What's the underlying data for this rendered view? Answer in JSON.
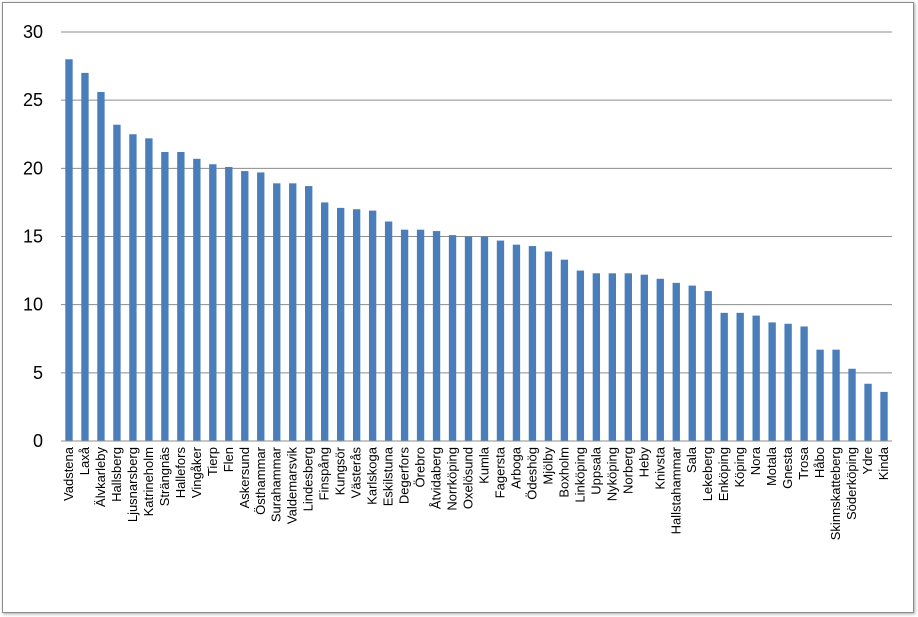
{
  "chart_data": {
    "type": "bar",
    "title": "",
    "xlabel": "",
    "ylabel": "",
    "ylim": [
      0,
      30
    ],
    "yticks": [
      "0",
      "5",
      "10",
      "15",
      "20",
      "25",
      "30"
    ],
    "grid": true,
    "legend": "none",
    "colors": {
      "bar": "#4a7ebb",
      "grid": "#8c8c8c",
      "axis": "#8c8c8c"
    },
    "categories": [
      "Vadstena",
      "Laxå",
      "Älvkarleby",
      "Hallsberg",
      "Ljusnarsberg",
      "Katrineholm",
      "Strängnäs",
      "Hallefors",
      "Vingåker",
      "Tierp",
      "Flen",
      "Askersund",
      "Östhammar",
      "Surahammar",
      "Valdemarsvik",
      "Lindesberg",
      "Finspång",
      "Kungsör",
      "Västerås",
      "Karlskoga",
      "Eskilstuna",
      "Degerfors",
      "Örebro",
      "Åtvidaberg",
      "Norrköping",
      "Oxelösund",
      "Kumla",
      "Fagersta",
      "Arboga",
      "Ödeshög",
      "Mjölby",
      "Boxholm",
      "Linköping",
      "Uppsala",
      "Nyköping",
      "Norberg",
      "Heby",
      "Knivsta",
      "Hallstahammar",
      "Sala",
      "Lekeberg",
      "Enköping",
      "Köping",
      "Nora",
      "Motala",
      "Gnesta",
      "Trosa",
      "Håbo",
      "Skinnskatteberg",
      "Söderköping",
      "Ydre",
      "Kinda"
    ],
    "values": [
      28.0,
      27.0,
      25.6,
      23.2,
      22.5,
      22.2,
      21.2,
      21.2,
      20.7,
      20.3,
      20.1,
      19.8,
      19.7,
      18.9,
      18.9,
      18.7,
      17.5,
      17.1,
      17.0,
      16.9,
      16.1,
      15.5,
      15.5,
      15.4,
      15.1,
      15.0,
      15.0,
      14.7,
      14.4,
      14.3,
      13.9,
      13.3,
      12.5,
      12.3,
      12.3,
      12.3,
      12.2,
      11.9,
      11.6,
      11.4,
      11.0,
      9.4,
      9.4,
      9.2,
      8.7,
      8.6,
      8.4,
      6.7,
      6.7,
      5.3,
      4.2,
      3.6
    ]
  }
}
